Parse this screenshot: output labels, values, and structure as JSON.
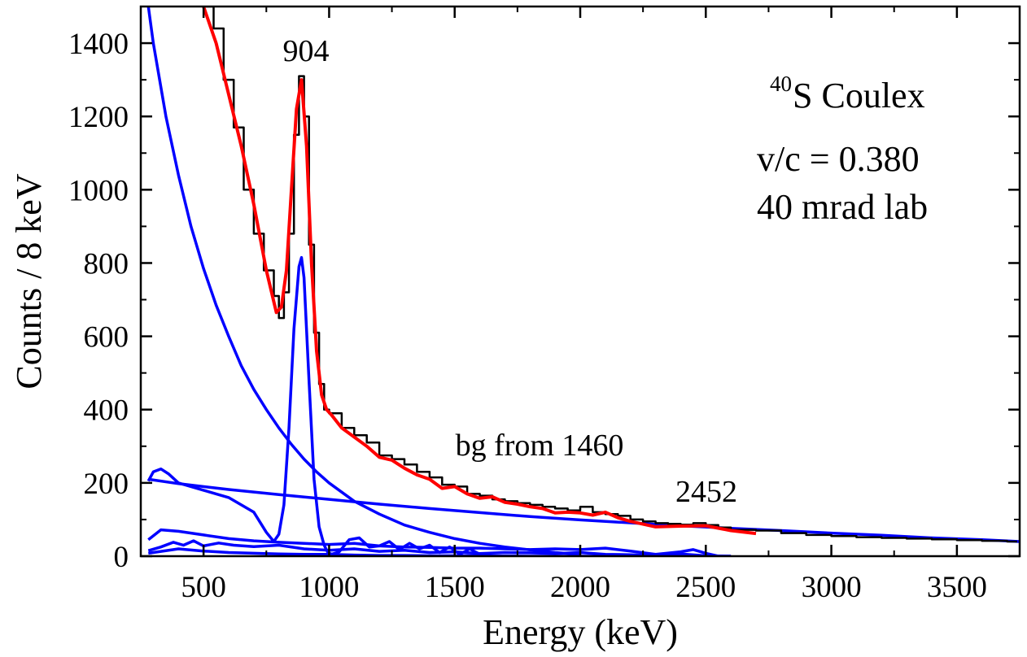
{
  "chart_data": {
    "type": "line",
    "xlabel": "Energy (keV)",
    "ylabel": "Counts / 8 keV",
    "xlim": [
      250,
      3750
    ],
    "ylim": [
      0,
      1500
    ],
    "x_ticks": [
      500,
      1000,
      1500,
      2000,
      2500,
      3000,
      3500
    ],
    "y_ticks": [
      0,
      200,
      400,
      600,
      800,
      1000,
      1200,
      1400
    ],
    "grid": false,
    "annotations": {
      "peak_904": "904",
      "peak_2452": "2452",
      "bg_label": "bg from 1460",
      "title_sup": "40",
      "title_rest": "S Coulex",
      "velocity": "v/c = 0.380",
      "angle": "40 mrad lab"
    },
    "colors": {
      "data": "#000000",
      "fit": "#ff0000",
      "components": "#0000ff"
    },
    "series": [
      {
        "name": "",
        "role": "data-histogram",
        "x": [
          500,
          540,
          580,
          620,
          660,
          700,
          740,
          780,
          800,
          820,
          840,
          860,
          880,
          900,
          920,
          940,
          960,
          980,
          1000,
          1050,
          1100,
          1150,
          1200,
          1250,
          1300,
          1350,
          1400,
          1450,
          1500,
          1550,
          1600,
          1650,
          1700,
          1750,
          1800,
          1850,
          1900,
          1950,
          2000,
          2050,
          2100,
          2150,
          2200,
          2250,
          2300,
          2350,
          2400,
          2450,
          2500,
          2550,
          2600,
          2700,
          2800,
          2900,
          3000,
          3100,
          3200,
          3300,
          3400,
          3500,
          3600,
          3700
        ],
        "y": [
          1500,
          1440,
          1300,
          1170,
          1000,
          880,
          780,
          710,
          650,
          720,
          880,
          1150,
          1310,
          1200,
          850,
          610,
          470,
          400,
          390,
          350,
          330,
          310,
          275,
          265,
          250,
          230,
          215,
          195,
          190,
          170,
          165,
          155,
          150,
          145,
          140,
          135,
          130,
          125,
          135,
          120,
          115,
          110,
          100,
          95,
          90,
          88,
          86,
          90,
          85,
          78,
          72,
          70,
          63,
          58,
          55,
          52,
          50,
          48,
          46,
          44,
          42,
          40
        ]
      },
      {
        "name": "",
        "role": "total-fit",
        "x": [
          500,
          550,
          600,
          650,
          700,
          750,
          790,
          810,
          830,
          850,
          870,
          890,
          910,
          930,
          950,
          970,
          990,
          1010,
          1050,
          1100,
          1150,
          1200,
          1250,
          1300,
          1350,
          1400,
          1450,
          1500,
          1550,
          1600,
          1650,
          1700,
          1750,
          1800,
          1850,
          1900,
          1950,
          2000,
          2050,
          2100,
          2150,
          2200,
          2300,
          2400,
          2500,
          2600,
          2700
        ],
        "y": [
          1500,
          1400,
          1260,
          1120,
          960,
          780,
          665,
          680,
          780,
          1000,
          1220,
          1300,
          1120,
          800,
          560,
          440,
          400,
          385,
          350,
          325,
          300,
          270,
          262,
          240,
          222,
          210,
          185,
          190,
          170,
          158,
          162,
          147,
          142,
          135,
          130,
          118,
          120,
          118,
          112,
          120,
          105,
          95,
          80,
          82,
          83,
          70,
          62
        ]
      },
      {
        "name": "",
        "role": "exponential-background",
        "x": [
          280,
          300,
          350,
          400,
          450,
          500,
          550,
          600,
          650,
          700,
          750,
          800,
          850,
          900,
          950,
          1000,
          1100,
          1200,
          1300,
          1400,
          1500,
          1600,
          1700,
          1800,
          1900,
          2000
        ],
        "y": [
          1500,
          1400,
          1200,
          1040,
          900,
          785,
          685,
          600,
          520,
          455,
          400,
          350,
          305,
          265,
          230,
          200,
          150,
          115,
          85,
          65,
          48,
          35,
          25,
          17,
          10,
          5
        ]
      },
      {
        "name": "",
        "role": "904-keV-response",
        "x": [
          280,
          300,
          330,
          360,
          400,
          500,
          600,
          700,
          750,
          780,
          800,
          820,
          840,
          860,
          880,
          890,
          900,
          920,
          940,
          960,
          980,
          995,
          1010,
          1040,
          1080,
          1120,
          1160,
          1200,
          1240,
          1280,
          1320,
          1360,
          1400,
          1440,
          1480,
          1520,
          1560,
          1600
        ],
        "y": [
          205,
          230,
          238,
          225,
          200,
          180,
          160,
          120,
          65,
          40,
          60,
          140,
          350,
          620,
          790,
          815,
          760,
          480,
          210,
          80,
          30,
          10,
          5,
          12,
          45,
          50,
          25,
          28,
          40,
          18,
          35,
          20,
          30,
          10,
          25,
          5,
          20,
          5
        ]
      },
      {
        "name": "",
        "role": "bg-from-1460",
        "x": [
          280,
          400,
          600,
          800,
          1000,
          1200,
          1400,
          1600,
          1800,
          2000,
          2200,
          2400,
          2600,
          2800,
          3000,
          3200,
          3400,
          3600,
          3750
        ],
        "y": [
          210,
          198,
          182,
          168,
          155,
          142,
          130,
          119,
          108,
          99,
          91,
          83,
          76,
          70,
          63,
          57,
          50,
          45,
          40
        ]
      },
      {
        "name": "",
        "role": "2452-keV-response",
        "x": [
          280,
          330,
          400,
          500,
          600,
          700,
          800,
          900,
          1000,
          1100,
          1200,
          1300,
          1400,
          1500,
          1600,
          1700,
          1800,
          1900,
          2000,
          2100,
          2200,
          2300,
          2400,
          2450,
          2500,
          2550
        ],
        "y": [
          45,
          72,
          68,
          58,
          48,
          42,
          38,
          35,
          32,
          35,
          28,
          25,
          24,
          22,
          22,
          20,
          18,
          20,
          18,
          22,
          14,
          5,
          12,
          18,
          8,
          0
        ]
      },
      {
        "name": "",
        "role": "low-energy-component",
        "x": [
          280,
          330,
          380,
          420,
          460,
          500,
          560,
          620,
          700,
          800,
          900,
          1000,
          1100,
          1200,
          1300,
          1400,
          1500,
          1600,
          1700,
          1800,
          1900,
          2000,
          2100,
          2200,
          2300,
          2400,
          2500,
          2600
        ],
        "y": [
          15,
          25,
          38,
          30,
          42,
          28,
          36,
          30,
          26,
          30,
          20,
          16,
          20,
          13,
          16,
          10,
          12,
          7,
          10,
          9,
          7,
          10,
          5,
          4,
          2,
          6,
          1,
          0
        ]
      },
      {
        "name": "",
        "role": "low-energy-component-2",
        "x": [
          280,
          400,
          500,
          600,
          700,
          800,
          900,
          1000,
          1100,
          1200,
          1300,
          1400,
          1600,
          1800,
          2000,
          2200,
          2400,
          2600
        ],
        "y": [
          8,
          20,
          14,
          10,
          8,
          6,
          5,
          5,
          3,
          2,
          2,
          1,
          1,
          0,
          0,
          0,
          0,
          0
        ]
      }
    ]
  }
}
